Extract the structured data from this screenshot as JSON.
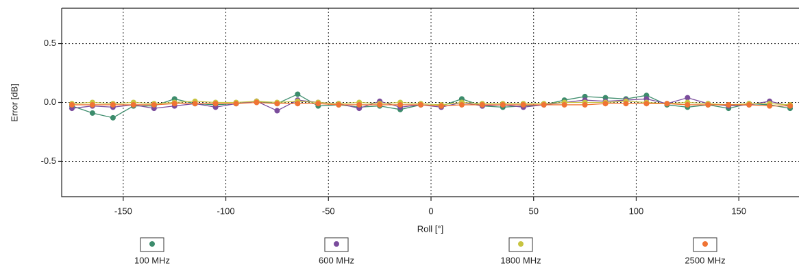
{
  "chart_data": {
    "type": "line",
    "xlabel": "Roll [°]",
    "ylabel": "Error [dB]",
    "x": [
      -175,
      -165,
      -155,
      -145,
      -135,
      -125,
      -115,
      -105,
      -95,
      -85,
      -75,
      -65,
      -55,
      -45,
      -35,
      -25,
      -15,
      -5,
      5,
      15,
      25,
      35,
      45,
      55,
      65,
      75,
      85,
      95,
      105,
      115,
      125,
      135,
      145,
      155,
      165,
      175
    ],
    "series": [
      {
        "name": "100 MHz",
        "color": "#3c8c6c",
        "values": [
          -0.03,
          -0.09,
          -0.13,
          -0.03,
          -0.03,
          0.03,
          -0.01,
          -0.02,
          -0.01,
          0.01,
          -0.01,
          0.07,
          -0.03,
          -0.02,
          -0.04,
          -0.03,
          -0.06,
          -0.02,
          -0.03,
          0.03,
          -0.03,
          -0.04,
          -0.03,
          -0.02,
          0.02,
          0.05,
          0.04,
          0.03,
          0.06,
          -0.02,
          -0.04,
          -0.02,
          -0.05,
          -0.01,
          -0.02,
          -0.05
        ]
      },
      {
        "name": "600 MHz",
        "color": "#7a4c9c",
        "values": [
          -0.05,
          -0.03,
          -0.04,
          -0.02,
          -0.05,
          -0.03,
          -0.01,
          -0.04,
          -0.01,
          0.01,
          -0.07,
          0.02,
          0.0,
          -0.01,
          -0.05,
          0.01,
          -0.04,
          -0.02,
          -0.04,
          0.0,
          -0.03,
          -0.02,
          -0.04,
          -0.02,
          0.0,
          0.02,
          0.01,
          0.02,
          0.03,
          -0.01,
          0.04,
          -0.01,
          -0.03,
          -0.02,
          0.01,
          -0.03
        ]
      },
      {
        "name": "1800 MHz",
        "color": "#c8c440",
        "values": [
          -0.01,
          0.0,
          -0.01,
          0.0,
          -0.01,
          0.0,
          0.01,
          0.0,
          0.0,
          0.01,
          0.0,
          0.01,
          0.0,
          -0.01,
          0.0,
          -0.01,
          0.0,
          -0.01,
          -0.02,
          0.0,
          -0.01,
          -0.01,
          -0.01,
          -0.01,
          0.0,
          0.0,
          0.0,
          0.01,
          0.0,
          -0.01,
          0.0,
          -0.01,
          -0.02,
          -0.01,
          -0.01,
          -0.02
        ]
      },
      {
        "name": "2500 MHz",
        "color": "#f07434",
        "values": [
          -0.02,
          -0.02,
          -0.02,
          -0.02,
          -0.02,
          -0.01,
          -0.01,
          -0.01,
          -0.01,
          0.0,
          -0.01,
          -0.01,
          -0.01,
          -0.02,
          -0.02,
          -0.02,
          -0.02,
          -0.02,
          -0.03,
          -0.02,
          -0.02,
          -0.02,
          -0.02,
          -0.02,
          -0.02,
          -0.02,
          -0.01,
          -0.01,
          -0.01,
          -0.01,
          -0.02,
          -0.02,
          -0.02,
          -0.02,
          -0.03,
          -0.03
        ]
      }
    ],
    "xlim": [
      -180,
      180
    ],
    "xticks": [
      -150,
      -100,
      -50,
      0,
      50,
      100,
      150
    ],
    "ylim": [
      -0.8,
      0.8
    ],
    "yticks": [
      0.5,
      {
        "value": 0,
        "label": "0.0"
      },
      -0.5
    ],
    "grid": true,
    "legend": "bottom"
  }
}
